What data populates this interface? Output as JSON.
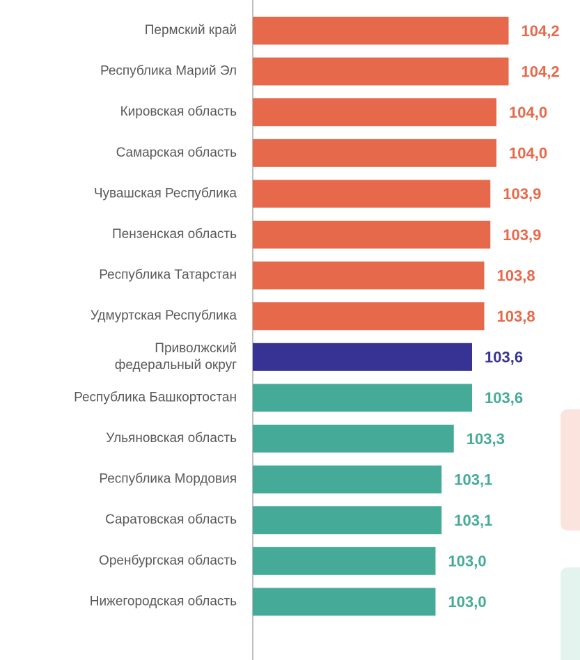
{
  "chart_data": {
    "type": "hbar",
    "categories": [
      "Пермский край",
      "Республика Марий Эл",
      "Кировская область",
      "Самарская область",
      "Чувашская Республика",
      "Пензенская область",
      "Республика Татарстан",
      "Удмуртская Республика",
      "Приволжский\nфедеральный округ",
      "Республика Башкортостан",
      "Ульяновская область",
      "Республика Мордовия",
      "Саратовская область",
      "Оренбургская область",
      "Нижегородская область"
    ],
    "values": [
      104.2,
      104.2,
      104.0,
      104.0,
      103.9,
      103.9,
      103.8,
      103.8,
      103.6,
      103.6,
      103.3,
      103.1,
      103.1,
      103.0,
      103.0
    ],
    "value_labels": [
      "104,2",
      "104,2",
      "104,0",
      "104,0",
      "103,9",
      "103,9",
      "103,8",
      "103,8",
      "103,6",
      "103,6",
      "103,3",
      "103,1",
      "103,1",
      "103,0",
      "103,0"
    ],
    "colors": [
      "#e5694a",
      "#e5694a",
      "#e5694a",
      "#e5694a",
      "#e5694a",
      "#e5694a",
      "#e5694a",
      "#e5694a",
      "#363394",
      "#45ab98",
      "#45ab98",
      "#45ab98",
      "#45ab98",
      "#45ab98",
      "#45ab98"
    ],
    "xlim": [
      100,
      105
    ]
  }
}
